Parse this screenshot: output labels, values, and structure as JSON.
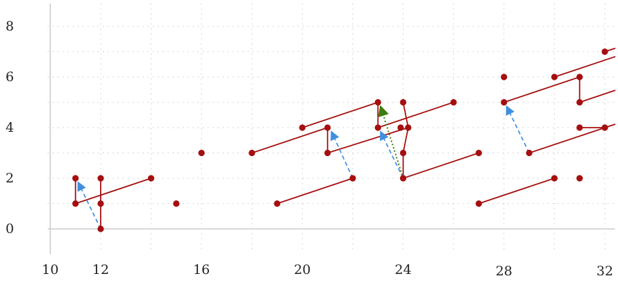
{
  "chart_data": {
    "type": "scatter",
    "title": "",
    "xlabel": "",
    "ylabel": "",
    "xlim": [
      9.9,
      32.4
    ],
    "ylim": [
      -0.9,
      8.9
    ],
    "grid": true,
    "x_ticks": [
      10,
      12,
      16,
      20,
      24,
      28,
      32
    ],
    "y_ticks": [
      0,
      2,
      4,
      6,
      8
    ],
    "colors": {
      "point": "#a50f0f",
      "edge": "#a50f0f",
      "blue_arrow": "#3f8fe0",
      "green_arrow": "#3b7d0e"
    },
    "points": [
      [
        11,
        1
      ],
      [
        11,
        2
      ],
      [
        12,
        0
      ],
      [
        12,
        1
      ],
      [
        12,
        2
      ],
      [
        14,
        2
      ],
      [
        15,
        1
      ],
      [
        16,
        3
      ],
      [
        18,
        3
      ],
      [
        19,
        1
      ],
      [
        20,
        4
      ],
      [
        21,
        3
      ],
      [
        21,
        4
      ],
      [
        22,
        2
      ],
      [
        23,
        4
      ],
      [
        23,
        5
      ],
      [
        23.9,
        4
      ],
      [
        24,
        2
      ],
      [
        24,
        3
      ],
      [
        24,
        5
      ],
      [
        24.2,
        4
      ],
      [
        26,
        5
      ],
      [
        27,
        1
      ],
      [
        27,
        3
      ],
      [
        28,
        5
      ],
      [
        28,
        6
      ],
      [
        29,
        3
      ],
      [
        30,
        2
      ],
      [
        30,
        6
      ],
      [
        31,
        2
      ],
      [
        31,
        4
      ],
      [
        31,
        5
      ],
      [
        31,
        6
      ],
      [
        32,
        4
      ],
      [
        32,
        7
      ]
    ],
    "edges": [
      [
        [
          11,
          1
        ],
        [
          11,
          2
        ]
      ],
      [
        [
          11,
          1
        ],
        [
          14,
          2
        ]
      ],
      [
        [
          12,
          0
        ],
        [
          12,
          2
        ]
      ],
      [
        [
          18,
          3
        ],
        [
          21,
          4
        ]
      ],
      [
        [
          21,
          3
        ],
        [
          21,
          4
        ]
      ],
      [
        [
          21,
          3
        ],
        [
          24.2,
          4
        ]
      ],
      [
        [
          19,
          1
        ],
        [
          22,
          2
        ]
      ],
      [
        [
          20,
          4
        ],
        [
          23,
          5
        ]
      ],
      [
        [
          23,
          4
        ],
        [
          23,
          5
        ]
      ],
      [
        [
          23,
          4
        ],
        [
          26,
          5
        ]
      ],
      [
        [
          24,
          2
        ],
        [
          24,
          3
        ]
      ],
      [
        [
          24,
          3
        ],
        [
          24.2,
          4
        ]
      ],
      [
        [
          24.2,
          4
        ],
        [
          24,
          5
        ]
      ],
      [
        [
          24,
          2
        ],
        [
          27,
          3
        ]
      ],
      [
        [
          27,
          1
        ],
        [
          30,
          2
        ]
      ],
      [
        [
          28,
          5
        ],
        [
          31,
          6
        ]
      ],
      [
        [
          29,
          3
        ],
        [
          32.4,
          4.13
        ]
      ],
      [
        [
          30,
          6
        ],
        [
          32.4,
          6.8
        ]
      ],
      [
        [
          31,
          5
        ],
        [
          31,
          6
        ]
      ],
      [
        [
          31,
          5
        ],
        [
          32.4,
          5.47
        ]
      ],
      [
        [
          31,
          4
        ],
        [
          32,
          4
        ]
      ],
      [
        [
          32,
          7
        ],
        [
          32.4,
          7.13
        ]
      ]
    ],
    "blue_arrows": [
      [
        [
          12,
          0
        ],
        [
          11.1,
          1.85
        ]
      ],
      [
        [
          22,
          2
        ],
        [
          21.15,
          3.85
        ]
      ],
      [
        [
          24,
          2
        ],
        [
          23.1,
          3.85
        ]
      ],
      [
        [
          29,
          3
        ],
        [
          28.1,
          4.85
        ]
      ]
    ],
    "green_arrows": [
      [
        [
          24,
          2
        ],
        [
          23.1,
          4.85
        ]
      ]
    ]
  }
}
